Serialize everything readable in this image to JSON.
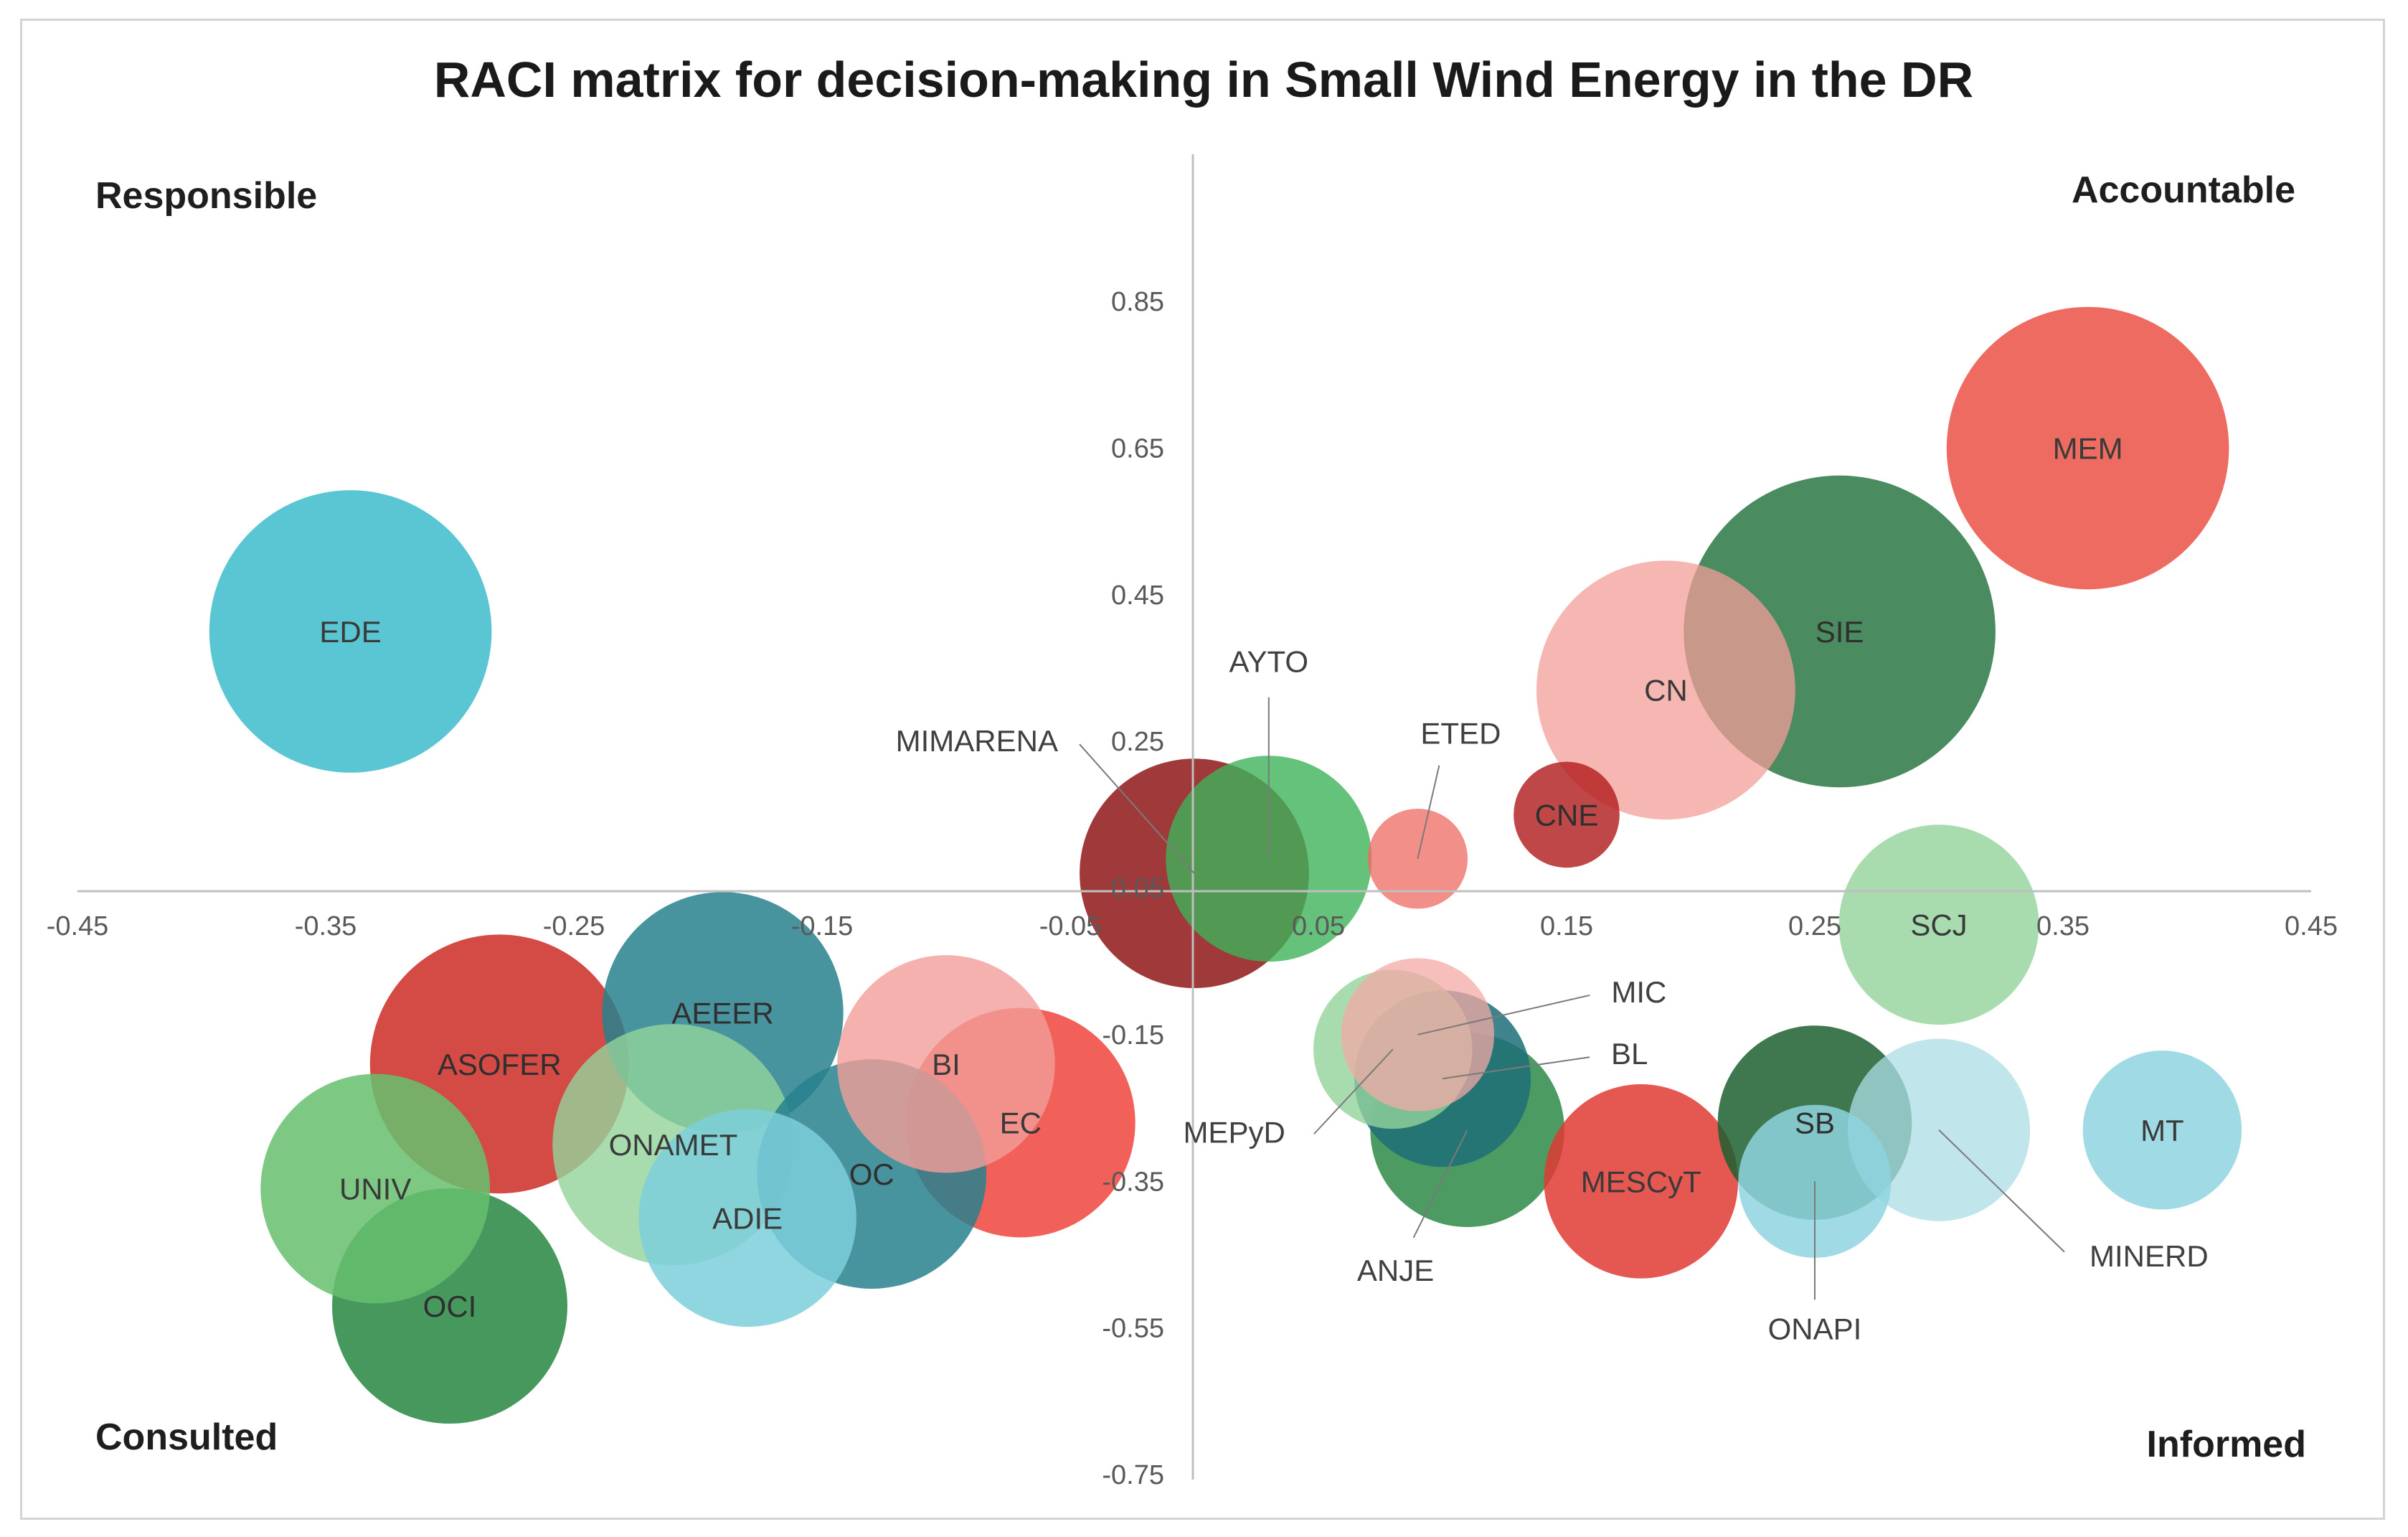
{
  "chart_data": {
    "type": "bubble",
    "title": "RACI matrix for decision-making in Small Wind Energy in the DR",
    "quadrant_labels": {
      "top_left": "Responsible",
      "top_right": "Accountable",
      "bottom_left": "Consulted",
      "bottom_right": "Informed"
    },
    "xlim": [
      -0.45,
      0.45
    ],
    "ylim": [
      -0.75,
      0.95
    ],
    "x_ticks": [
      "-0.45",
      "-0.35",
      "-0.25",
      "-0.15",
      "-0.05",
      "0.05",
      "0.15",
      "0.25",
      "0.35",
      "0.45"
    ],
    "y_ticks": [
      "0.85",
      "0.65",
      "0.45",
      "0.25",
      "0.05",
      "-0.15",
      "-0.35",
      "-0.55",
      "-0.75"
    ],
    "x_tick_values": [
      -0.45,
      -0.35,
      -0.25,
      -0.15,
      -0.05,
      0.05,
      0.15,
      0.25,
      0.35,
      0.45
    ],
    "y_tick_values": [
      0.85,
      0.65,
      0.45,
      0.25,
      0.05,
      -0.15,
      -0.35,
      -0.55,
      -0.75
    ],
    "grid": false,
    "legend": "none",
    "colors": {
      "cyan": "#3dbccb",
      "light_cyan": "#8fd3df",
      "green": "#3fb35a",
      "light_green": "#92d39b",
      "dark_green": "#23733a",
      "red": "#e8342d",
      "light_red": "#f09a95",
      "dark_red": "#a41b1b",
      "teal": "#2b8391"
    },
    "bubbles": [
      {
        "name": "EDE",
        "x": -0.34,
        "y": 0.4,
        "size": 0.48,
        "color": "#3dbccb",
        "opacity": 0.85
      },
      {
        "name": "MEM",
        "x": 0.36,
        "y": 0.65,
        "size": 0.48,
        "color": "#ea5145",
        "opacity": 0.85
      },
      {
        "name": "CN",
        "x": 0.19,
        "y": 0.32,
        "size": 0.44,
        "color": "#f39d98",
        "opacity": 0.75
      },
      {
        "name": "SIE",
        "x": 0.26,
        "y": 0.4,
        "size": 0.53,
        "color": "#22723d",
        "opacity": 0.82
      },
      {
        "name": "CNE",
        "x": 0.15,
        "y": 0.15,
        "size": 0.18,
        "color": "#b21e1e",
        "opacity": 0.82
      },
      {
        "name": "AYTO",
        "x": 0.03,
        "y": 0.09,
        "size": 0.35,
        "color": "#3fb35a",
        "opacity": 0.8
      },
      {
        "name": "ETED",
        "x": 0.09,
        "y": 0.09,
        "size": 0.17,
        "color": "#ee6a62",
        "opacity": 0.75
      },
      {
        "name": "MIMARENA",
        "x": 0.0,
        "y": 0.07,
        "size": 0.39,
        "color": "#8f1616",
        "opacity": 0.85
      },
      {
        "name": "SCJ",
        "x": 0.3,
        "y": 0.0,
        "size": 0.34,
        "color": "#92d39b",
        "opacity": 0.8
      },
      {
        "name": "MIC",
        "x": 0.09,
        "y": -0.15,
        "size": 0.26,
        "color": "#f3a9a5",
        "opacity": 0.75
      },
      {
        "name": "MEPyD",
        "x": 0.08,
        "y": -0.17,
        "size": 0.27,
        "color": "#92d39b",
        "opacity": 0.8
      },
      {
        "name": "BL",
        "x": 0.1,
        "y": -0.21,
        "size": 0.3,
        "color": "#1d6e78",
        "opacity": 0.85
      },
      {
        "name": "ANJE",
        "x": 0.11,
        "y": -0.28,
        "size": 0.33,
        "color": "#2d8a46",
        "opacity": 0.85
      },
      {
        "name": "MESCyT",
        "x": 0.18,
        "y": -0.35,
        "size": 0.33,
        "color": "#e03a32",
        "opacity": 0.85
      },
      {
        "name": "SB",
        "x": 0.25,
        "y": -0.27,
        "size": 0.33,
        "color": "#1d5f30",
        "opacity": 0.85
      },
      {
        "name": "ONAPI",
        "x": 0.25,
        "y": -0.35,
        "size": 0.26,
        "color": "#8fd3df",
        "opacity": 0.85
      },
      {
        "name": "MINERD",
        "x": 0.3,
        "y": -0.28,
        "size": 0.31,
        "color": "#abdde6",
        "opacity": 0.75
      },
      {
        "name": "MT",
        "x": 0.39,
        "y": -0.28,
        "size": 0.27,
        "color": "#8fd3df",
        "opacity": 0.85
      },
      {
        "name": "AEEER",
        "x": -0.19,
        "y": -0.12,
        "size": 0.41,
        "color": "#27818d",
        "opacity": 0.85
      },
      {
        "name": "ASOFER",
        "x": -0.28,
        "y": -0.19,
        "size": 0.44,
        "color": "#cd2a25",
        "opacity": 0.85
      },
      {
        "name": "BI",
        "x": -0.1,
        "y": -0.19,
        "size": 0.37,
        "color": "#f39d98",
        "opacity": 0.8
      },
      {
        "name": "EC",
        "x": -0.07,
        "y": -0.27,
        "size": 0.39,
        "color": "#ee3a30",
        "opacity": 0.8
      },
      {
        "name": "ONAMET",
        "x": -0.21,
        "y": -0.3,
        "size": 0.41,
        "color": "#92d39b",
        "opacity": 0.8
      },
      {
        "name": "OC",
        "x": -0.13,
        "y": -0.34,
        "size": 0.39,
        "color": "#27818d",
        "opacity": 0.85
      },
      {
        "name": "UNIV",
        "x": -0.33,
        "y": -0.36,
        "size": 0.39,
        "color": "#66c06e",
        "opacity": 0.85
      },
      {
        "name": "ADIE",
        "x": -0.18,
        "y": -0.4,
        "size": 0.37,
        "color": "#7ccfdb",
        "opacity": 0.85
      },
      {
        "name": "OCI",
        "x": -0.3,
        "y": -0.52,
        "size": 0.4,
        "color": "#2c8a47",
        "opacity": 0.88
      }
    ]
  }
}
